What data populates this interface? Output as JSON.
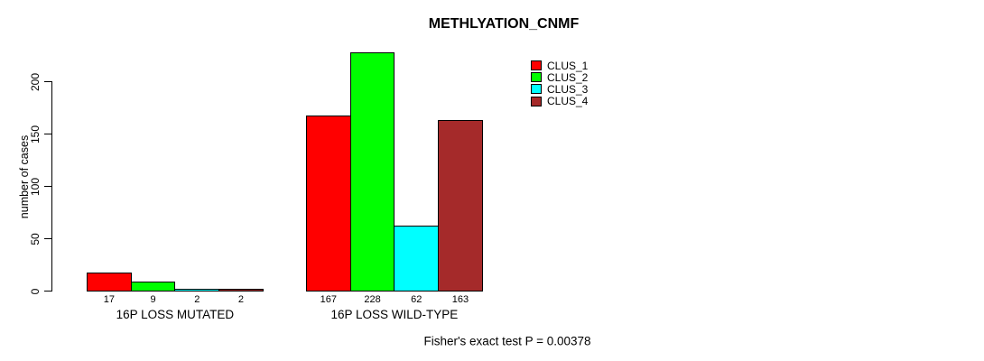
{
  "title": "METHLYATION_CNMF",
  "chart_data": {
    "type": "bar",
    "title": "METHLYATION_CNMF",
    "ylabel": "number of cases",
    "xlabel": "",
    "categories": [
      "16P LOSS MUTATED",
      "16P LOSS WILD-TYPE"
    ],
    "series": [
      {
        "name": "CLUS_1",
        "color": "#FF0000",
        "values": [
          17,
          167
        ]
      },
      {
        "name": "CLUS_2",
        "color": "#00FF00",
        "values": [
          9,
          228
        ]
      },
      {
        "name": "CLUS_3",
        "color": "#00FFFF",
        "values": [
          2,
          62
        ]
      },
      {
        "name": "CLUS_4",
        "color": "#A52A2A",
        "values": [
          2,
          163
        ]
      }
    ],
    "yticks": [
      0,
      50,
      100,
      150,
      200
    ],
    "ylim": [
      0,
      232
    ],
    "grid": false,
    "bar_value_labels": true,
    "legend_position": "top-right",
    "legend_entries": [
      "CLUS_1",
      "CLUS_2",
      "CLUS_3",
      "CLUS_4"
    ],
    "annotation": "Fisher's exact test P = 0.00378"
  }
}
